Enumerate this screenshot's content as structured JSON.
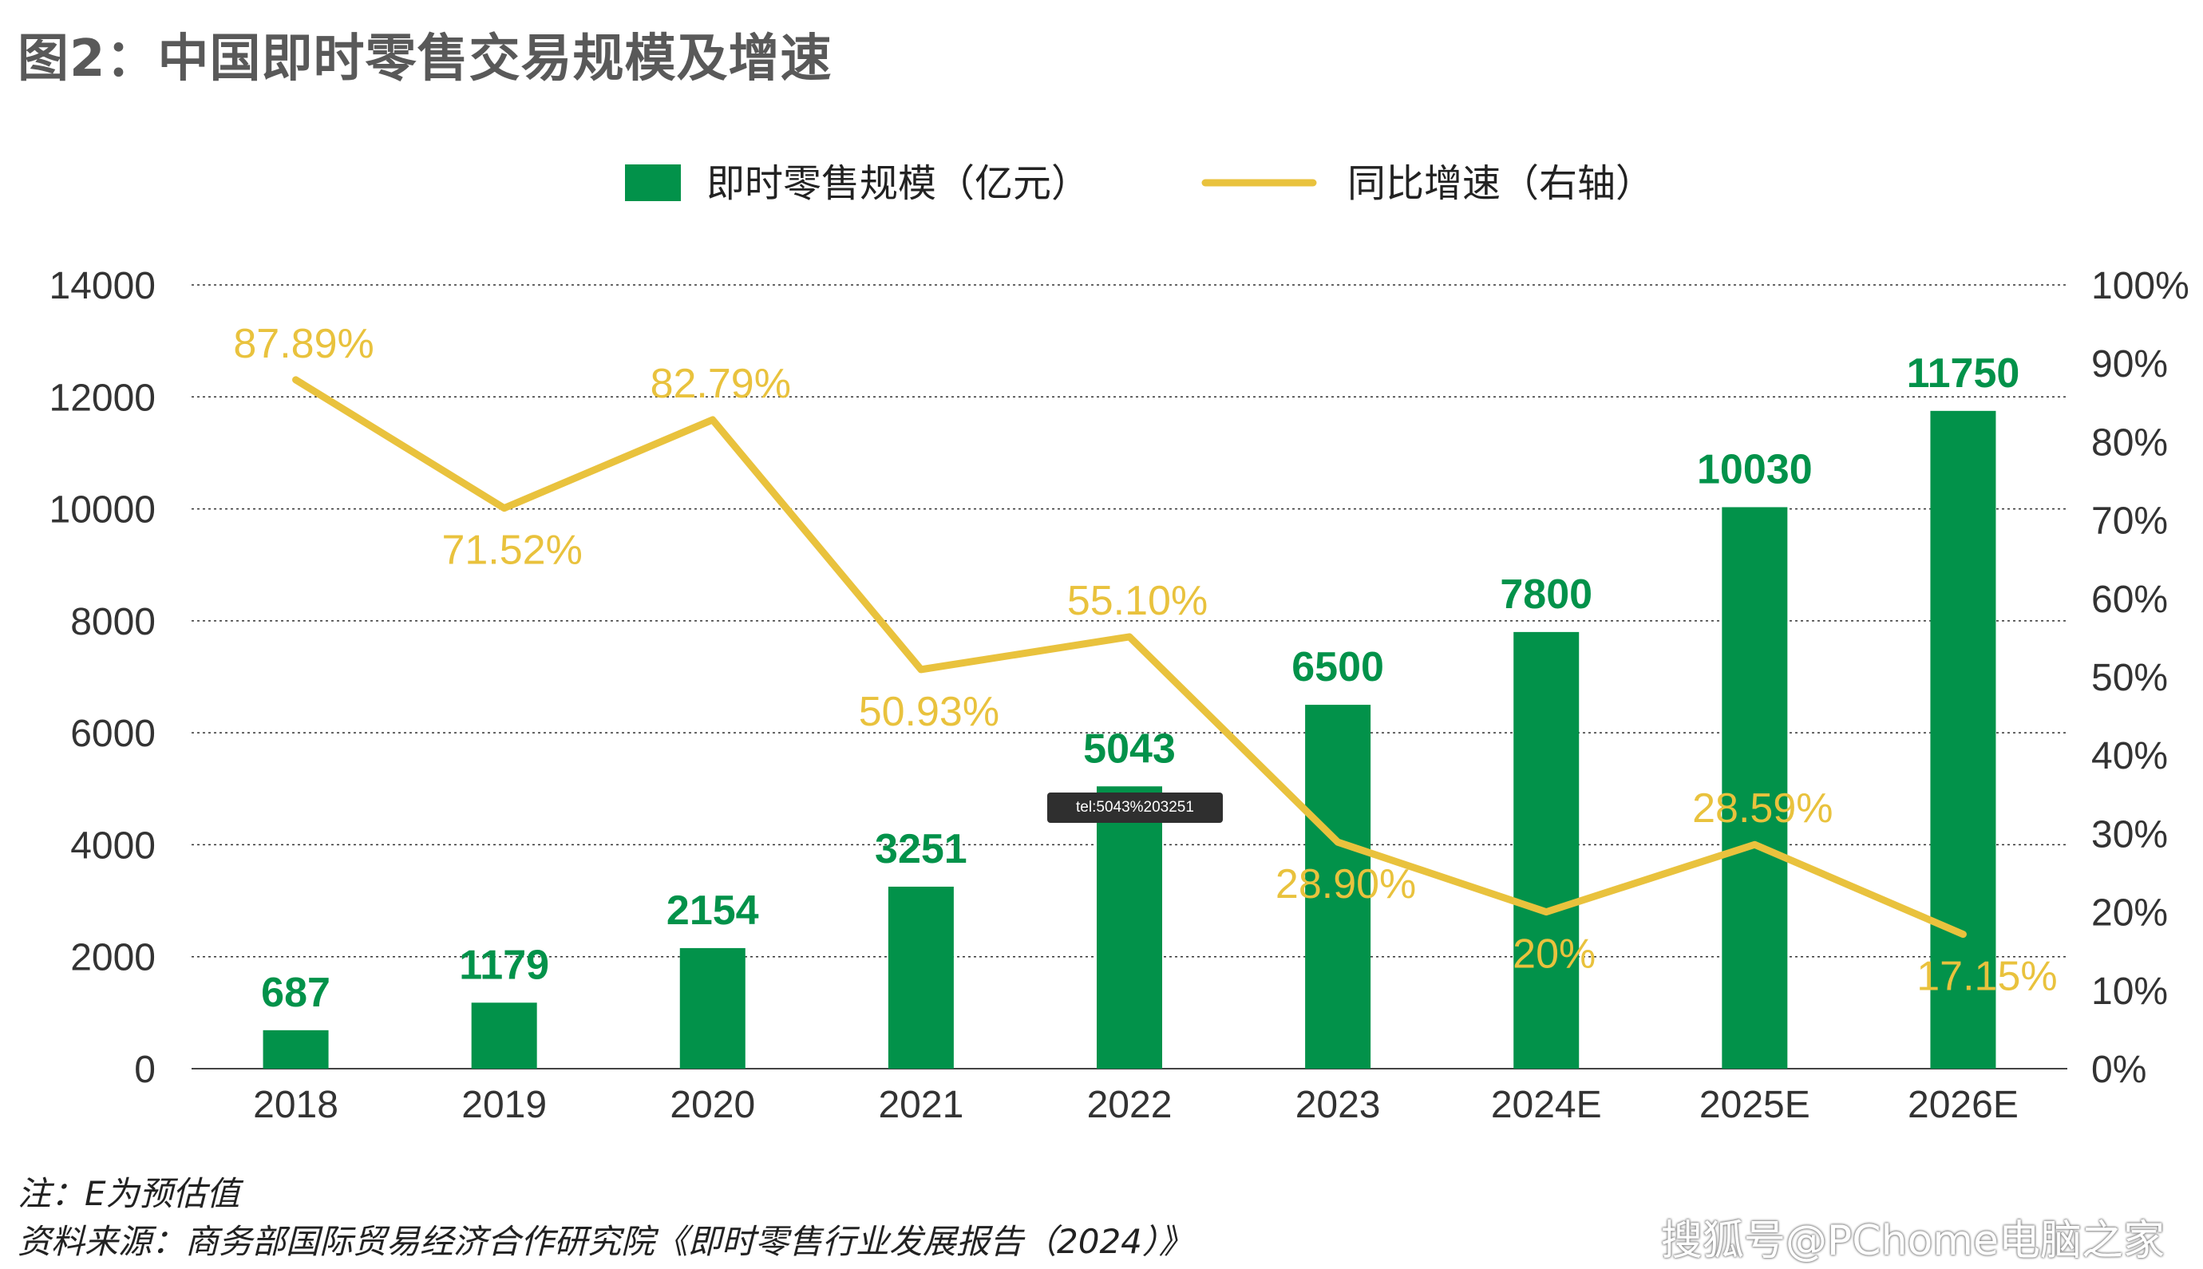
{
  "title": "图2：中国即时零售交易规模及增速",
  "notes": {
    "note": "注：E为预估值",
    "source": "资料来源：商务部国际贸易经济合作研究院《即时零售行业发展报告（2024）》"
  },
  "watermark": "搜狐号@PChome电脑之家",
  "tooltip": "tel:5043%203251",
  "colors": {
    "bar": "#02924a",
    "line": "#e9c23d",
    "axis_text": "#333333",
    "grid": "#333333"
  },
  "chart_data": {
    "type": "bar+line",
    "categories": [
      "2018",
      "2019",
      "2020",
      "2021",
      "2022",
      "2023",
      "2024E",
      "2025E",
      "2026E"
    ],
    "series": [
      {
        "name": "即时零售规模（亿元）",
        "type": "bar",
        "axis": "left",
        "values": [
          687,
          1179,
          2154,
          3251,
          5043,
          6500,
          7800,
          10030,
          11750
        ],
        "labels": [
          "687",
          "1179",
          "2154",
          "3251",
          "5043",
          "6500",
          "7800",
          "10030",
          "11750"
        ]
      },
      {
        "name": "同比增速（右轴）",
        "type": "line",
        "axis": "right",
        "values": [
          87.89,
          71.52,
          82.79,
          50.93,
          55.1,
          28.9,
          20,
          28.59,
          17.15
        ],
        "labels": [
          "87.89%",
          "71.52%",
          "82.79%",
          "50.93%",
          "55.10%",
          "28.90%",
          "20%",
          "28.59%",
          "17.15%"
        ]
      }
    ],
    "left_axis": {
      "min": 0,
      "max": 14000,
      "ticks": [
        "0",
        "2000",
        "4000",
        "6000",
        "8000",
        "10000",
        "12000",
        "14000"
      ]
    },
    "right_axis": {
      "min": 0,
      "max": 100,
      "ticks": [
        "0%",
        "10%",
        "20%",
        "30%",
        "40%",
        "50%",
        "60%",
        "70%",
        "80%",
        "90%",
        "100%"
      ]
    },
    "grid": true,
    "legend": {
      "position": "top-center",
      "entries": [
        "即时零售规模（亿元）",
        "同比增速（右轴）"
      ]
    }
  }
}
